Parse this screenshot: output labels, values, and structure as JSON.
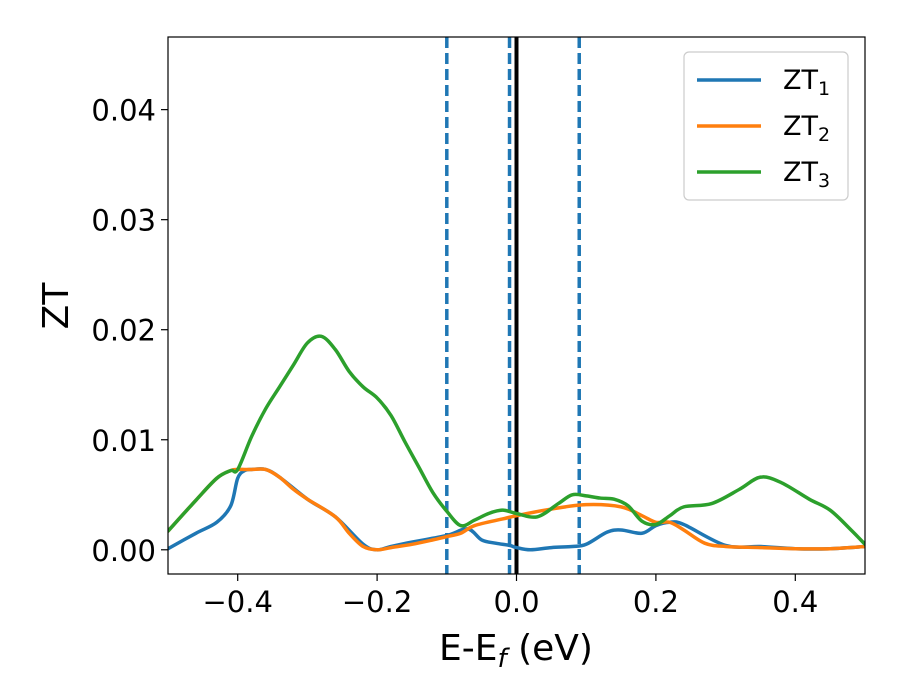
{
  "chart_data": {
    "type": "line",
    "xlabel": {
      "base": "E-E",
      "sub": "f",
      "suffix": " (eV)"
    },
    "ylabel": "ZT",
    "xlim": [
      -0.5,
      0.5
    ],
    "ylim": [
      -0.0022,
      0.0466
    ],
    "x_ticks": [
      -0.4,
      -0.2,
      0.0,
      0.2,
      0.4
    ],
    "x_tick_labels": [
      "−0.4",
      "−0.2",
      "0.0",
      "0.2",
      "0.4"
    ],
    "y_ticks": [
      0.0,
      0.01,
      0.02,
      0.03,
      0.04
    ],
    "y_tick_labels": [
      "0.00",
      "0.01",
      "0.02",
      "0.03",
      "0.04"
    ],
    "grid": false,
    "legend_position": "top-right",
    "vertical_lines": [
      {
        "x": -0.1,
        "style": "dashed",
        "color": "#1f77b4"
      },
      {
        "x": -0.01,
        "style": "dashed",
        "color": "#1f77b4"
      },
      {
        "x": 0.09,
        "style": "dashed",
        "color": "#1f77b4"
      },
      {
        "x": 0.0,
        "style": "solid",
        "color": "#000000"
      }
    ],
    "series": [
      {
        "name": "ZT",
        "sub": "1",
        "color": "#1f77b4",
        "x": [
          -0.5,
          -0.46,
          -0.43,
          -0.41,
          -0.4,
          -0.39,
          -0.38,
          -0.36,
          -0.34,
          -0.3,
          -0.26,
          -0.22,
          -0.2,
          -0.18,
          -0.15,
          -0.1,
          -0.07,
          -0.05,
          -0.03,
          -0.01,
          0.0,
          0.02,
          0.05,
          0.08,
          0.1,
          0.13,
          0.15,
          0.18,
          0.2,
          0.22,
          0.24,
          0.3,
          0.35,
          0.4,
          0.45,
          0.5
        ],
        "y": [
          0.0001,
          0.0015,
          0.0025,
          0.004,
          0.0065,
          0.0072,
          0.0073,
          0.0073,
          0.0066,
          0.0046,
          0.003,
          0.0005,
          0.0,
          0.0003,
          0.0007,
          0.0013,
          0.0019,
          0.0009,
          0.0006,
          0.0004,
          0.0002,
          0.0,
          0.0002,
          0.0003,
          0.0005,
          0.0016,
          0.0018,
          0.0015,
          0.0022,
          0.0025,
          0.0023,
          0.0004,
          0.0003,
          0.0001,
          0.0001,
          0.0003
        ]
      },
      {
        "name": "ZT",
        "sub": "2",
        "color": "#ff7f0e",
        "x": [
          -0.5,
          -0.46,
          -0.43,
          -0.41,
          -0.4,
          -0.39,
          -0.38,
          -0.36,
          -0.34,
          -0.32,
          -0.3,
          -0.26,
          -0.24,
          -0.22,
          -0.2,
          -0.18,
          -0.15,
          -0.12,
          -0.1,
          -0.08,
          -0.06,
          -0.02,
          0.0,
          0.05,
          0.1,
          0.15,
          0.18,
          0.2,
          0.22,
          0.24,
          0.27,
          0.3,
          0.35,
          0.4,
          0.45,
          0.5
        ],
        "y": [
          0.0017,
          0.0045,
          0.0065,
          0.0072,
          0.0073,
          0.0073,
          0.0073,
          0.0073,
          0.0066,
          0.0055,
          0.0046,
          0.003,
          0.0015,
          0.0003,
          0.0,
          0.0002,
          0.0005,
          0.0009,
          0.0012,
          0.0015,
          0.0022,
          0.0028,
          0.0031,
          0.0037,
          0.0041,
          0.0039,
          0.0031,
          0.0025,
          0.0025,
          0.0018,
          0.0006,
          0.0003,
          0.0002,
          0.0001,
          0.0001,
          0.0003
        ]
      },
      {
        "name": "ZT",
        "sub": "3",
        "color": "#2ca02c",
        "x": [
          -0.5,
          -0.46,
          -0.43,
          -0.41,
          -0.4,
          -0.38,
          -0.36,
          -0.34,
          -0.32,
          -0.3,
          -0.28,
          -0.26,
          -0.24,
          -0.22,
          -0.2,
          -0.18,
          -0.16,
          -0.14,
          -0.12,
          -0.1,
          -0.08,
          -0.06,
          -0.04,
          -0.02,
          0.0,
          0.03,
          0.06,
          0.08,
          0.1,
          0.12,
          0.14,
          0.16,
          0.18,
          0.2,
          0.22,
          0.24,
          0.28,
          0.32,
          0.35,
          0.38,
          0.42,
          0.45,
          0.48,
          0.5
        ],
        "y": [
          0.0017,
          0.0045,
          0.0065,
          0.0072,
          0.0073,
          0.0103,
          0.0128,
          0.0148,
          0.0168,
          0.0188,
          0.0194,
          0.0182,
          0.0162,
          0.0148,
          0.0138,
          0.0122,
          0.0098,
          0.0075,
          0.0052,
          0.0035,
          0.0022,
          0.0027,
          0.0033,
          0.0036,
          0.0033,
          0.003,
          0.0042,
          0.005,
          0.0049,
          0.0047,
          0.0046,
          0.004,
          0.0026,
          0.0023,
          0.0031,
          0.0039,
          0.0042,
          0.0055,
          0.0066,
          0.0061,
          0.0046,
          0.0036,
          0.0018,
          0.0005
        ]
      }
    ]
  }
}
